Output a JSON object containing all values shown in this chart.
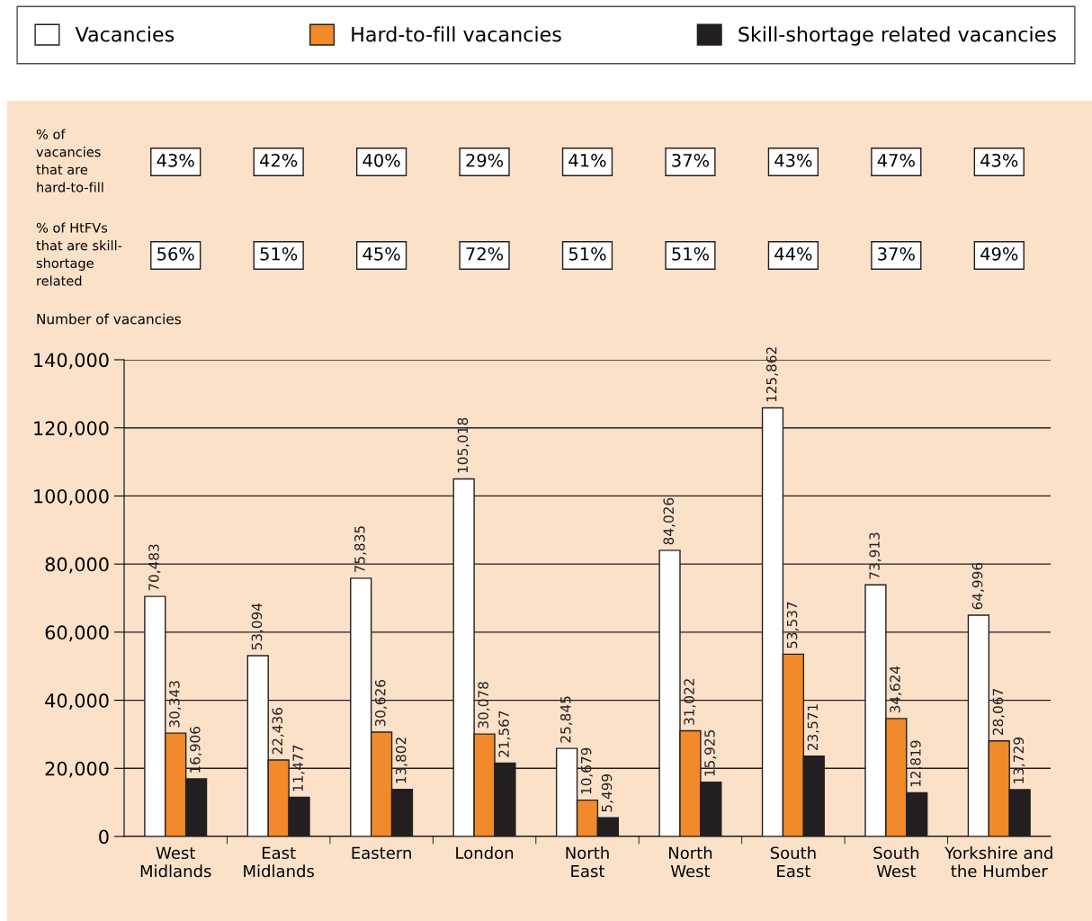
{
  "chart_data": {
    "type": "bar",
    "ylabel": "Number of vacancies",
    "categories": [
      "West\nMidlands",
      "East\nMidlands",
      "Eastern",
      "London",
      "North\nEast",
      "North\nWest",
      "South\nEast",
      "South\nWest",
      "Yorkshire and\nthe Humber"
    ],
    "series": [
      {
        "name": "Vacancies",
        "color": "#ffffff",
        "values": [
          70483,
          53094,
          75835,
          105018,
          25845,
          84026,
          125862,
          73913,
          64996
        ],
        "value_labels": [
          "70,483",
          "53,094",
          "75,835",
          "105,018",
          "25,845",
          "84,026",
          "125,862",
          "73,913",
          "64,996"
        ]
      },
      {
        "name": "Hard-to-fill vacancies",
        "color": "#f08a2a",
        "values": [
          30343,
          22436,
          30626,
          30078,
          10679,
          31022,
          53537,
          34624,
          28067
        ],
        "value_labels": [
          "30,343",
          "22,436",
          "30,626",
          "30,078",
          "10,679",
          "31,022",
          "53,537",
          "34,624",
          "28,067"
        ]
      },
      {
        "name": "Skill-shortage related vacancies",
        "color": "#231f20",
        "values": [
          16906,
          11477,
          13802,
          21567,
          5499,
          15925,
          23571,
          12819,
          13729
        ],
        "value_labels": [
          "16,906",
          "11,477",
          "13,802",
          "21,567",
          "5,499",
          "15,925",
          "23,571",
          "12,819",
          "13,729"
        ]
      }
    ],
    "ylim": [
      0,
      140000
    ],
    "yticks": [
      {
        "value": 0,
        "label": "0"
      },
      {
        "value": 20000,
        "label": "20,000"
      },
      {
        "value": 40000,
        "label": "40,000"
      },
      {
        "value": 60000,
        "label": "60,000"
      },
      {
        "value": 80000,
        "label": "80,000"
      },
      {
        "value": 100000,
        "label": "100,000"
      },
      {
        "value": 120000,
        "label": "120,000"
      },
      {
        "value": 140000,
        "label": "140,000"
      }
    ],
    "grid": "y",
    "legend": "top",
    "annotations": [
      "% of\nvacancies\nthat are\nhard-to-fill",
      "43%",
      "42%",
      "40%",
      "29%",
      "41%",
      "37%",
      "43%",
      "47%",
      "43%",
      "% of HtFVs\nthat are skill-\nshortage\nrelated",
      "56%",
      "51%",
      "45%",
      "72%",
      "51%",
      "51%",
      "44%",
      "37%",
      "49%"
    ]
  }
}
